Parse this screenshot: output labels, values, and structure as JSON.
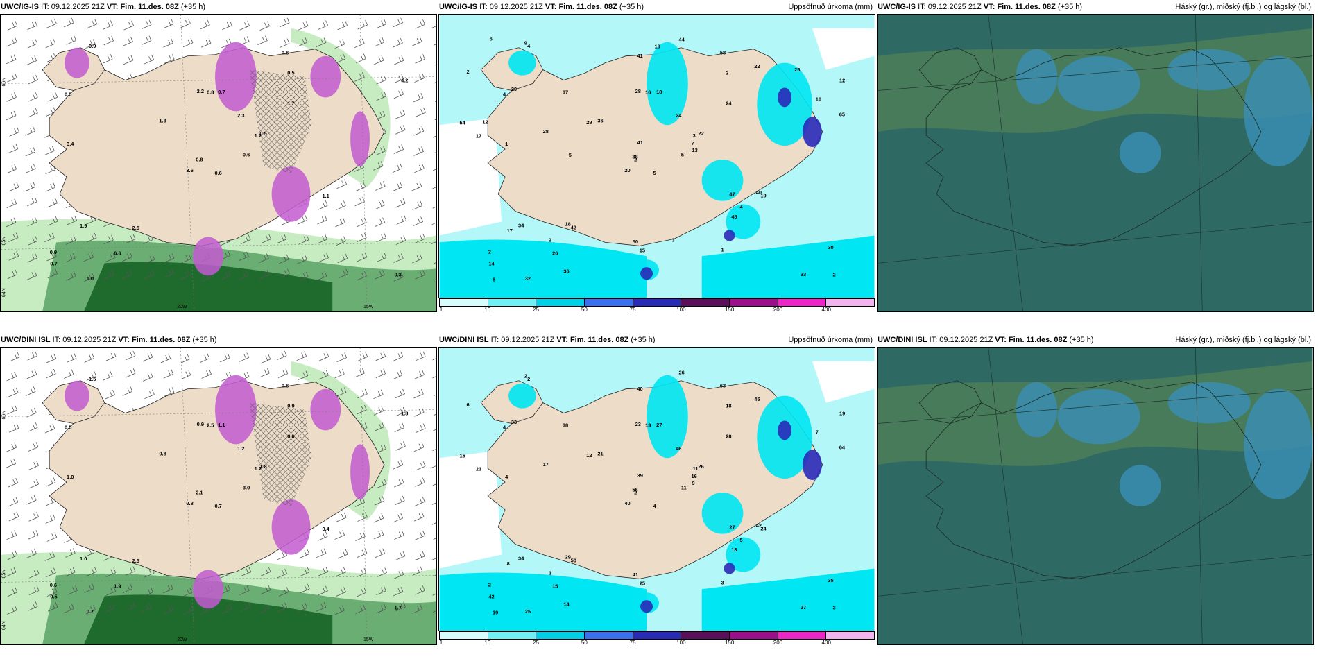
{
  "panels": [
    {
      "id": "top-left",
      "model": "UWC/IG-IS",
      "it_label": "IT:",
      "it_value": "09.12.2025 21Z",
      "vt_label": "VT:",
      "vt_value": "Fim. 11.des. 08Z",
      "lead": "(+35 h)",
      "right_title": "",
      "lon_labels": [
        "20W",
        "15W"
      ],
      "lat_labels": [
        "66N",
        "65N",
        "64N"
      ],
      "values": [
        "0.6",
        "0.5",
        "0.8",
        "0.9",
        "1.2",
        "2.5",
        "0.6",
        "0.7",
        "0.5",
        "0.6",
        "0.9",
        "0.3",
        "3.4",
        "4.2",
        "3.6",
        "1.7",
        "1.0",
        "2.2",
        "2.3",
        "1.9",
        "1.3",
        "0.7",
        "6.6",
        "0.8",
        "0.5",
        "1.1"
      ]
    },
    {
      "id": "top-middle",
      "model": "UWC/IG-IS",
      "it_label": "IT:",
      "it_value": "09.12.2025 21Z",
      "vt_label": "VT:",
      "vt_value": "Fim. 11.des. 08Z",
      "lead": "(+35 h)",
      "right_title": "Uppsöfnuð úrkoma (mm)",
      "values": [
        "5",
        "4",
        "2",
        "2",
        "3",
        "42",
        "58",
        "18",
        "2",
        "5",
        "4",
        "2",
        "1",
        "12",
        "20",
        "24",
        "32",
        "28",
        "24",
        "34",
        "36",
        "14",
        "26",
        "16",
        "22",
        "19",
        "29",
        "41",
        "17",
        "47",
        "65",
        "38",
        "50",
        "41",
        "37",
        "22",
        "18",
        "33",
        "30",
        "40",
        "44",
        "29",
        "28",
        "45",
        "36",
        "54",
        "7",
        "8",
        "15",
        "13",
        "17",
        "16",
        "2",
        "4",
        "1",
        "2",
        "9",
        "6",
        "3",
        "25",
        "18",
        "5",
        "12"
      ]
    },
    {
      "id": "top-right",
      "model": "UWC/IG-IS",
      "it_label": "IT:",
      "it_value": "09.12.2025 21Z",
      "vt_label": "VT:",
      "vt_value": "Fim. 11.des. 08Z",
      "lead": "(+35 h)",
      "right_title": "Háský (gr.), miðský (fj.bl.) og lágský (bl.)"
    },
    {
      "id": "bottom-left",
      "model": "UWC/DINI ISL",
      "it_label": "IT:",
      "it_value": "09.12.2025 21Z",
      "vt_label": "VT:",
      "vt_value": "Fim. 11.des. 08Z",
      "lead": "(+35 h)",
      "right_title": "",
      "lon_labels": [
        "20W",
        "15W"
      ],
      "lat_labels": [
        "66N",
        "65N",
        "64N"
      ],
      "values": [
        "0.7",
        "0.5",
        "2.1",
        "0.6",
        "1.2",
        "2.5",
        "0.6",
        "1.1",
        "0.9",
        "3.0",
        "1.5",
        "1.7",
        "1.0",
        "1.8",
        "0.8",
        "0.6",
        "0.7",
        "0.9",
        "1.2",
        "1.0",
        "0.8",
        "0.5",
        "1.9",
        "2.5",
        "1.8",
        "0.4"
      ]
    },
    {
      "id": "bottom-middle",
      "model": "UWC/DINI ISL",
      "it_label": "IT:",
      "it_value": "09.12.2025 21Z",
      "vt_label": "VT:",
      "vt_value": "Fim. 11.des. 08Z",
      "lead": "(+35 h)",
      "right_title": "Uppsöfnuð úrkoma (mm)",
      "values": [
        "4",
        "4",
        "2",
        "2",
        "11",
        "50",
        "63",
        "27",
        "18",
        "11",
        "2",
        "3",
        "4",
        "19",
        "40",
        "28",
        "25",
        "23",
        "46",
        "34",
        "21",
        "42",
        "15",
        "13",
        "26",
        "24",
        "33",
        "40",
        "21",
        "27",
        "64",
        "56",
        "41",
        "39",
        "38",
        "45",
        "29",
        "27",
        "35",
        "42",
        "26",
        "12",
        "17",
        "13",
        "14",
        "15",
        "16",
        "19",
        "25",
        "9",
        "8",
        "7",
        "6",
        "5",
        "3",
        "1",
        "2"
      ]
    },
    {
      "id": "bottom-right",
      "model": "UWC/DINI ISL",
      "it_label": "IT:",
      "it_value": "09.12.2025 21Z",
      "vt_label": "VT:",
      "vt_value": "Fim. 11.des. 08Z",
      "lead": "(+35 h)",
      "right_title": "Háský (gr.), miðský (fj.bl.) og lágský (bl.)"
    }
  ],
  "precip_legend": {
    "ticks": [
      "1",
      "10",
      "25",
      "50",
      "75",
      "100",
      "150",
      "200",
      "400"
    ],
    "colors": [
      "#d8fbfd",
      "#6ff0f4",
      "#00cfe8",
      "#3c6fee",
      "#2a2ab8",
      "#5a0f5a",
      "#9b0f8c",
      "#ec26c8",
      "#f3b3ee"
    ]
  },
  "colors": {
    "land": "#ecdcc8",
    "sea_white": "#ffffff",
    "precip_light": "#b3f7f9",
    "precip_mid": "#00e6f2",
    "green_light": "#c7ecc1",
    "green_dark": "#1f6b2e",
    "snow_magenta": "#c25ad0",
    "cloud_dark": "#2f6964",
    "cloud_mid": "#4e7f57",
    "cloud_blue": "#3a8fb6"
  }
}
